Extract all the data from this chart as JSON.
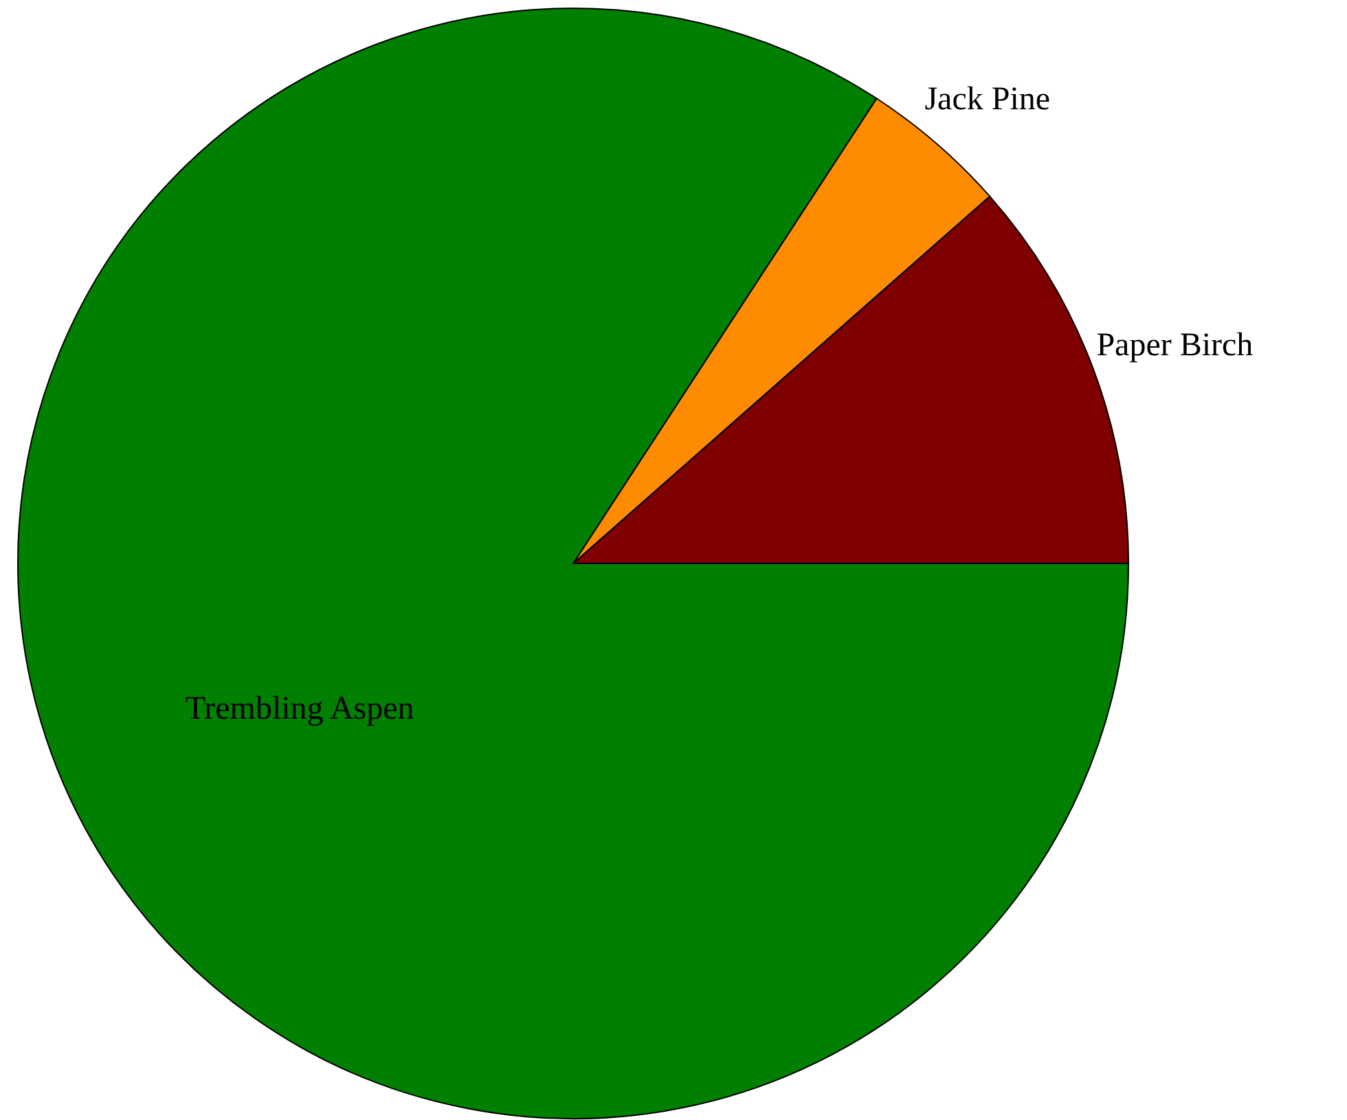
{
  "chart_data": {
    "type": "pie",
    "categories": [
      "Paper Birch",
      "Jack Pine",
      "Trembling Aspen"
    ],
    "values": [
      11.5,
      4.3,
      84.2
    ],
    "colors": [
      "#7f0000",
      "#ff8c00",
      "#007f00"
    ]
  }
}
